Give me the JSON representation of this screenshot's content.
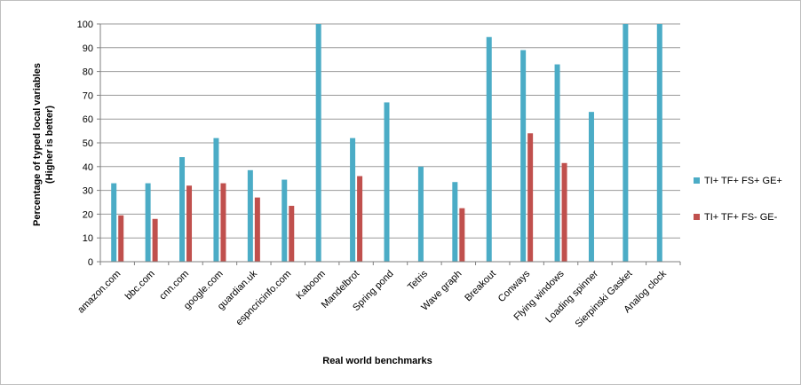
{
  "chart_data": {
    "type": "bar",
    "title": "",
    "xlabel": "Real world benchmarks",
    "ylabel_lines": [
      "Percentage of typed local variables",
      "(Higher is better)"
    ],
    "ylim": [
      0,
      100
    ],
    "yticks": [
      0,
      10,
      20,
      30,
      40,
      50,
      60,
      70,
      80,
      90,
      100
    ],
    "grid": true,
    "legend_position": "right",
    "categories": [
      "amazon.com",
      "bbc.com",
      "cnn.com",
      "google.com",
      "guardian.uk",
      "espncricinfo.com",
      "Kaboom",
      "Mandelbrot",
      "Spring pond",
      "Tetris",
      "Wave graph",
      "Breakout",
      "Conways",
      "Flying windows",
      "Loading spinner",
      "Sierpinski Gasket",
      "Analog clock"
    ],
    "series": [
      {
        "name": "TI+ TF+ FS+ GE+",
        "color": "#4bacc6",
        "values": [
          33,
          33,
          44,
          52,
          38.5,
          34.5,
          100,
          52,
          67,
          40,
          33.5,
          94.5,
          89,
          83,
          63,
          100,
          100
        ]
      },
      {
        "name": "TI+ TF+ FS- GE-",
        "color": "#c0504d",
        "values": [
          19.5,
          18,
          32,
          33,
          27,
          23.5,
          null,
          36,
          null,
          null,
          22.5,
          null,
          54,
          41.5,
          null,
          null,
          null
        ]
      }
    ]
  }
}
